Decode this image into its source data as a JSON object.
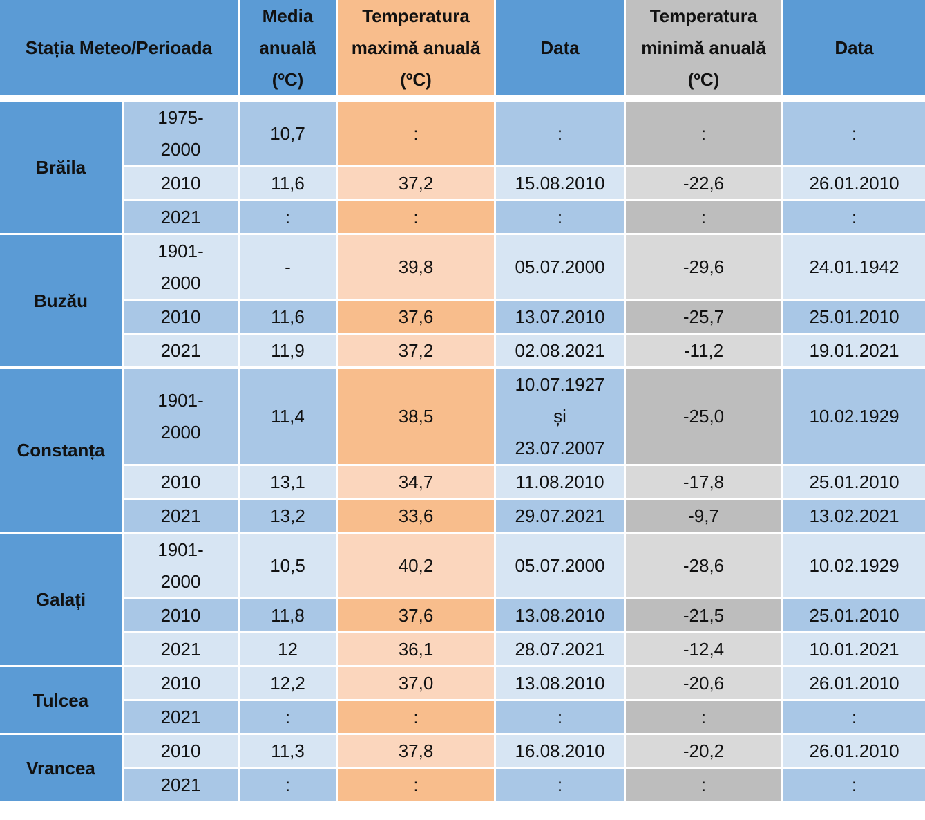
{
  "headers": {
    "station": "Stația Meteo/Perioada",
    "mean": "Media anuală (ºC)",
    "tmax": "Temperatura maximă anuală (ºC)",
    "date_max": "Data",
    "tmin": "Temperatura minimă anuală (ºC)",
    "date_min": "Data"
  },
  "colors": {
    "header_blue": "#5b9bd5",
    "header_orange": "#f8bd8c",
    "header_grey": "#c0c0c0",
    "dark_blue": "#a9c7e6",
    "light_blue": "#d7e5f3",
    "dark_orange": "#f8bd8c",
    "light_orange": "#fbd6bd",
    "dark_grey": "#bdbdbd",
    "light_grey": "#d9d9d9"
  },
  "stations": [
    {
      "name": "Brăila",
      "rows": [
        {
          "period": "1975-\n2000",
          "mean": "10,7",
          "tmax": ":",
          "date_max": ":",
          "tmin": ":",
          "date_min": ":"
        },
        {
          "period": "2010",
          "mean": "11,6",
          "tmax": "37,2",
          "date_max": "15.08.2010",
          "tmin": "-22,6",
          "date_min": "26.01.2010"
        },
        {
          "period": "2021",
          "mean": ":",
          "tmax": ":",
          "date_max": ":",
          "tmin": ":",
          "date_min": ":"
        }
      ]
    },
    {
      "name": "Buzău",
      "rows": [
        {
          "period": "1901-\n2000",
          "mean": "-",
          "tmax": "39,8",
          "date_max": "05.07.2000",
          "tmin": "-29,6",
          "date_min": "24.01.1942"
        },
        {
          "period": "2010",
          "mean": "11,6",
          "tmax": "37,6",
          "date_max": "13.07.2010",
          "tmin": "-25,7",
          "date_min": "25.01.2010"
        },
        {
          "period": "2021",
          "mean": "11,9",
          "tmax": "37,2",
          "date_max": "02.08.2021",
          "tmin": "-11,2",
          "date_min": "19.01.2021"
        }
      ]
    },
    {
      "name": "Constanța",
      "rows": [
        {
          "period": "1901-\n2000",
          "mean": "11,4",
          "tmax": "38,5",
          "date_max": "10.07.1927\nși\n23.07.2007",
          "tmin": "-25,0",
          "date_min": "10.02.1929"
        },
        {
          "period": "2010",
          "mean": "13,1",
          "tmax": "34,7",
          "date_max": "11.08.2010",
          "tmin": "-17,8",
          "date_min": "25.01.2010"
        },
        {
          "period": "2021",
          "mean": "13,2",
          "tmax": "33,6",
          "date_max": "29.07.2021",
          "tmin": "-9,7",
          "date_min": "13.02.2021"
        }
      ]
    },
    {
      "name": "Galați",
      "rows": [
        {
          "period": "1901-\n2000",
          "mean": "10,5",
          "tmax": "40,2",
          "date_max": "05.07.2000",
          "tmin": "-28,6",
          "date_min": "10.02.1929"
        },
        {
          "period": "2010",
          "mean": "11,8",
          "tmax": "37,6",
          "date_max": "13.08.2010",
          "tmin": "-21,5",
          "date_min": "25.01.2010"
        },
        {
          "period": "2021",
          "mean": "12",
          "tmax": "36,1",
          "date_max": "28.07.2021",
          "tmin": "-12,4",
          "date_min": "10.01.2021"
        }
      ]
    },
    {
      "name": "Tulcea",
      "rows": [
        {
          "period": "2010",
          "mean": "12,2",
          "tmax": "37,0",
          "date_max": "13.08.2010",
          "tmin": "-20,6",
          "date_min": "26.01.2010"
        },
        {
          "period": "2021",
          "mean": ":",
          "tmax": ":",
          "date_max": ":",
          "tmin": ":",
          "date_min": ":"
        }
      ]
    },
    {
      "name": "Vrancea",
      "rows": [
        {
          "period": "2010",
          "mean": "11,3",
          "tmax": "37,8",
          "date_max": "16.08.2010",
          "tmin": "-20,2",
          "date_min": "26.01.2010"
        },
        {
          "period": "2021",
          "mean": ":",
          "tmax": ":",
          "date_max": ":",
          "tmin": ":",
          "date_min": ":"
        }
      ]
    }
  ]
}
